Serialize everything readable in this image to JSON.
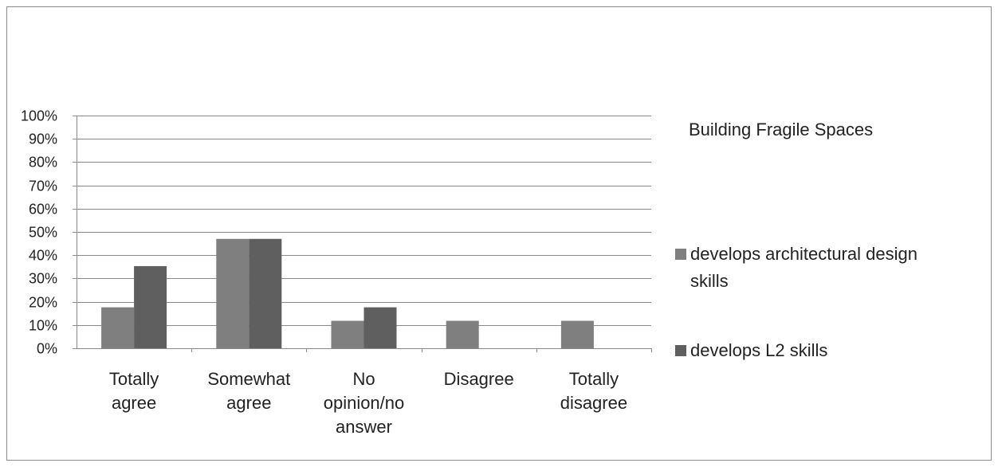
{
  "chart_data": {
    "type": "bar",
    "title": "Building Fragile Spaces",
    "categories": [
      [
        "Totally",
        "agree"
      ],
      [
        "Somewhat",
        "agree"
      ],
      [
        "No",
        "opinion/no",
        "answer"
      ],
      [
        "Disagree"
      ],
      [
        "Totally",
        "disagree"
      ]
    ],
    "series": [
      {
        "name_lines": [
          "develops architectural design",
          "skills"
        ],
        "color": "#7f7f7f",
        "values": [
          17.6,
          47.0,
          11.8,
          11.8,
          11.8
        ]
      },
      {
        "name_lines": [
          "develops L2 skills"
        ],
        "color": "#5f5f5f",
        "values": [
          35.3,
          47.0,
          17.6,
          0,
          0
        ]
      }
    ],
    "ylim": [
      0,
      100
    ],
    "ytick_step": 10,
    "ytick_suffix": "%",
    "grid": true,
    "legend_placement": "right"
  }
}
